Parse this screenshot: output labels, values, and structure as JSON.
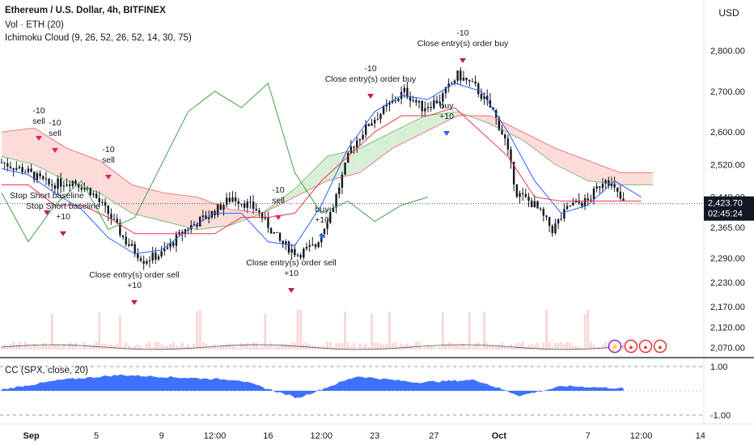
{
  "header": {
    "symbol_line": "Ethereum / U.S. Dollar, 4h, BITFINEX",
    "volume_line": "Vol · ETH (20)",
    "ichimoku_line": "Ichimoku Cloud (9, 26, 52, 26, 52, 14, 30, 75)",
    "currency": "USD"
  },
  "price_panel": {
    "y_ticks": [
      "2,800.00",
      "2,700.00",
      "2,600.00",
      "2,520.00",
      "2,440.00",
      "2,365.00",
      "2,290.00",
      "2,230.00",
      "2,170.00",
      "2,120.00",
      "2,070.00"
    ],
    "last_price": "2,423.70",
    "countdown": "02:45:24",
    "last_price_color": "#131722"
  },
  "cc_panel": {
    "label": "CC (SPX, close, 20)",
    "y_ticks": [
      "1.00",
      "-1.00"
    ],
    "fill_color": "#2962ff"
  },
  "x_axis": {
    "labels": [
      "Sep",
      "5",
      "9",
      "12:00",
      "16",
      "12:00",
      "23",
      "27",
      "Oct",
      "7",
      "12:00",
      "14"
    ]
  },
  "signals": [
    {
      "kind": "exit-short",
      "lines": [
        "-10",
        "sell"
      ]
    },
    {
      "kind": "exit-short",
      "lines": [
        "-10",
        "sell"
      ]
    },
    {
      "kind": "stop-short",
      "lines": [
        "Stop Short baseline"
      ]
    },
    {
      "kind": "stop-short",
      "lines": [
        "Stop Short baseline",
        "+10"
      ]
    },
    {
      "kind": "sell",
      "lines": [
        "-10",
        "sell"
      ]
    },
    {
      "kind": "close",
      "lines": [
        "Close entry(s) order sell",
        "+10"
      ]
    },
    {
      "kind": "sell",
      "lines": [
        "-10",
        "sell"
      ]
    },
    {
      "kind": "buy",
      "lines": [
        "buy",
        "+10"
      ]
    },
    {
      "kind": "close",
      "lines": [
        "Close entry(s) order sell",
        "+10"
      ]
    },
    {
      "kind": "close",
      "lines": [
        "-10",
        "Close entry(s) order buy"
      ]
    },
    {
      "kind": "buy",
      "lines": [
        "buy",
        "+10"
      ]
    },
    {
      "kind": "close",
      "lines": [
        "-10",
        "Close entry(s) order buy"
      ]
    }
  ],
  "colors": {
    "bull_candle": "#131722",
    "tenkan": "#2962ff",
    "kijun": "#f23645",
    "lagging": "#43a047",
    "cloud_bull": "#d9eed7",
    "cloud_bear": "#fbdcd8",
    "signal_sell": "#e91e63",
    "signal_buy": "#2962ff",
    "signal_close": "#c2185b"
  },
  "chart_data": [
    {
      "type": "candlestick",
      "title": "Ethereum / U.S. Dollar, 4h, BITFINEX",
      "ylabel": "USD",
      "ylim": [
        2045,
        2865
      ],
      "x_tick_labels": [
        "Sep",
        "5",
        "9",
        "12:00",
        "16",
        "12:00",
        "23",
        "27",
        "Oct",
        "7",
        "12:00",
        "14"
      ],
      "close_anchors": [
        {
          "t": 0,
          "v": 2525
        },
        {
          "t": 8,
          "v": 2505
        },
        {
          "t": 16,
          "v": 2470
        },
        {
          "t": 24,
          "v": 2480
        },
        {
          "t": 30,
          "v": 2455
        },
        {
          "t": 36,
          "v": 2400
        },
        {
          "t": 42,
          "v": 2330
        },
        {
          "t": 48,
          "v": 2285
        },
        {
          "t": 54,
          "v": 2300
        },
        {
          "t": 62,
          "v": 2360
        },
        {
          "t": 70,
          "v": 2395
        },
        {
          "t": 78,
          "v": 2440
        },
        {
          "t": 86,
          "v": 2410
        },
        {
          "t": 94,
          "v": 2330
        },
        {
          "t": 100,
          "v": 2300
        },
        {
          "t": 106,
          "v": 2320
        },
        {
          "t": 112,
          "v": 2420
        },
        {
          "t": 118,
          "v": 2560
        },
        {
          "t": 124,
          "v": 2620
        },
        {
          "t": 130,
          "v": 2660
        },
        {
          "t": 136,
          "v": 2700
        },
        {
          "t": 142,
          "v": 2660
        },
        {
          "t": 148,
          "v": 2680
        },
        {
          "t": 154,
          "v": 2740
        },
        {
          "t": 160,
          "v": 2710
        },
        {
          "t": 166,
          "v": 2650
        },
        {
          "t": 170,
          "v": 2580
        },
        {
          "t": 174,
          "v": 2450
        },
        {
          "t": 180,
          "v": 2420
        },
        {
          "t": 186,
          "v": 2360
        },
        {
          "t": 192,
          "v": 2420
        },
        {
          "t": 198,
          "v": 2430
        },
        {
          "t": 204,
          "v": 2490
        },
        {
          "t": 210,
          "v": 2423.7
        }
      ],
      "series": [
        {
          "name": "Tenkan",
          "values": [
            2510,
            2495,
            2450,
            2410,
            2340,
            2300,
            2310,
            2360,
            2400,
            2400,
            2330,
            2320,
            2420,
            2560,
            2650,
            2690,
            2680,
            2720,
            2700,
            2600,
            2480,
            2400,
            2420,
            2480,
            2440
          ],
          "x_step": 9
        },
        {
          "name": "Kijun",
          "values": [
            2470,
            2470,
            2420,
            2420,
            2390,
            2350,
            2350,
            2350,
            2350,
            2390,
            2390,
            2400,
            2480,
            2540,
            2600,
            2640,
            2640,
            2660,
            2600,
            2540,
            2440,
            2430,
            2430,
            2430,
            2430
          ],
          "x_step": 9
        },
        {
          "name": "Lagging",
          "values": [
            2450,
            2330,
            2420,
            2480,
            2360,
            2390,
            2520,
            2650,
            2700,
            2660,
            2720,
            2500,
            2400,
            2430,
            2380,
            2420,
            2440
          ],
          "x_step": 9
        },
        {
          "name": "Senkou A",
          "values": [
            2540,
            2520,
            2480,
            2450,
            2400,
            2380,
            2360,
            2370,
            2400,
            2460,
            2540,
            2560,
            2600,
            2640,
            2650,
            2620,
            2580,
            2520,
            2480,
            2470,
            2470
          ],
          "x_step": 11
        },
        {
          "name": "Senkou B",
          "values": [
            2600,
            2610,
            2560,
            2530,
            2470,
            2450,
            2440,
            2410,
            2400,
            2440,
            2480,
            2500,
            2560,
            2600,
            2640,
            2640,
            2600,
            2560,
            2530,
            2500,
            2500
          ],
          "x_step": 11
        }
      ]
    },
    {
      "type": "area",
      "title": "CC (SPX, close, 20)",
      "ylim": [
        -1,
        1
      ],
      "points": [
        {
          "t": 0,
          "v": 0.05
        },
        {
          "t": 20,
          "v": 0.45
        },
        {
          "t": 40,
          "v": 0.65
        },
        {
          "t": 60,
          "v": 0.55
        },
        {
          "t": 80,
          "v": 0.45
        },
        {
          "t": 100,
          "v": -0.3
        },
        {
          "t": 120,
          "v": 0.6
        },
        {
          "t": 140,
          "v": 0.35
        },
        {
          "t": 160,
          "v": 0.45
        },
        {
          "t": 175,
          "v": -0.2
        },
        {
          "t": 190,
          "v": 0.2
        },
        {
          "t": 210,
          "v": 0.1
        }
      ]
    }
  ]
}
